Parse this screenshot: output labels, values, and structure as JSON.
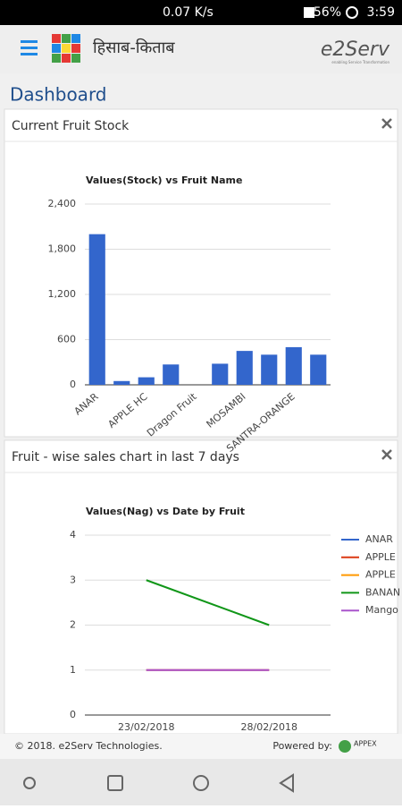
{
  "status": {
    "speed": "0.07 K/s",
    "battery": "56%",
    "time": "3:59"
  },
  "header": {
    "title": "हिसाब-किताब",
    "brand": "e2Serv",
    "tagline": "enabling Service Transformation"
  },
  "page_title": "Dashboard",
  "panels": [
    "Current Fruit Stock",
    "Fruit - wise sales chart in last 7 days"
  ],
  "chart_data": [
    {
      "type": "bar",
      "title": "Values(Stock) vs Fruit Name",
      "color": "#3366cc",
      "categories": [
        "ANAR",
        null,
        "APPLE HC",
        null,
        "Dragon Fruit",
        null,
        "MOSAMBI",
        null,
        "SANTRA-ORANGE",
        null
      ],
      "values": [
        2000,
        50,
        100,
        270,
        0,
        280,
        450,
        400,
        500,
        400
      ],
      "ylim": [
        0,
        2400
      ],
      "yticks": [
        0,
        600,
        {
          "value": 1200,
          "label": "1,200"
        },
        {
          "value": 1800,
          "label": "1,800"
        },
        {
          "value": 2400,
          "label": "2,400"
        }
      ],
      "grid": true
    },
    {
      "type": "line",
      "title": "Values(Nag) vs Date by Fruit",
      "categories": [
        "23/02/2018",
        "28/02/2018"
      ],
      "series": [
        {
          "name": "ANAR",
          "color": "#3366cc",
          "values": [
            null,
            null
          ]
        },
        {
          "name": "APPLE",
          "color": "#dc3912",
          "values": [
            1,
            1
          ]
        },
        {
          "name": "APPLE",
          "color": "#ff9900",
          "values": [
            null,
            null
          ]
        },
        {
          "name": "BANAN",
          "color": "#109618",
          "values": [
            3,
            2
          ]
        },
        {
          "name": "Mango",
          "color": "#aa55cc",
          "values": [
            1,
            1
          ]
        }
      ],
      "ylim": [
        0,
        4
      ],
      "yticks": [
        0,
        1,
        2,
        3,
        4
      ],
      "grid": true,
      "legend": "right"
    }
  ],
  "footer": {
    "copyright": "© 2018. e2Serv Technologies.",
    "powered": "Powered by:",
    "appex": "APPEX"
  }
}
